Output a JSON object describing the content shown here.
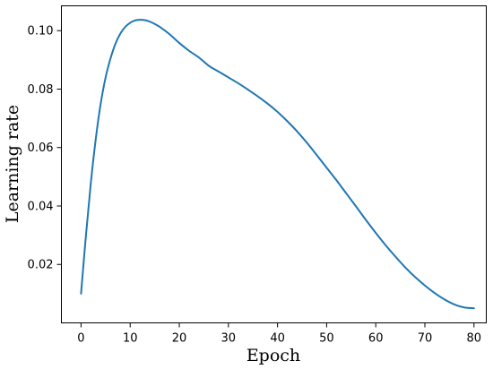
{
  "chart_data": {
    "type": "line",
    "title": "",
    "xlabel": "Epoch",
    "ylabel": "Learning rate",
    "xlim": [
      -4,
      82.5
    ],
    "ylim": [
      0.0,
      0.1085
    ],
    "x_ticks": [
      0,
      10,
      20,
      30,
      40,
      50,
      60,
      70,
      80
    ],
    "x_tick_labels": [
      "0",
      "10",
      "20",
      "30",
      "40",
      "50",
      "60",
      "70",
      "80"
    ],
    "y_ticks": [
      0.02,
      0.04,
      0.06,
      0.08,
      0.1
    ],
    "y_tick_labels": [
      "0.02",
      "0.04",
      "0.06",
      "0.08",
      "0.10"
    ],
    "grid": false,
    "legend": "none",
    "series": [
      {
        "color": "#1f77b4",
        "x": [
          0,
          1,
          2,
          3,
          4,
          5,
          6,
          7,
          8,
          9,
          10,
          11,
          12,
          13,
          14,
          15,
          16,
          18,
          20,
          22,
          24,
          26,
          28,
          30,
          32,
          34,
          36,
          38,
          40,
          42,
          44,
          46,
          48,
          50,
          52,
          54,
          56,
          58,
          60,
          62,
          64,
          66,
          68,
          70,
          72,
          74,
          76,
          78,
          80
        ],
        "y": [
          0.01,
          0.03,
          0.048,
          0.063,
          0.075,
          0.084,
          0.0905,
          0.0955,
          0.099,
          0.1013,
          0.1027,
          0.1035,
          0.1037,
          0.1036,
          0.1031,
          0.1023,
          0.1013,
          0.0988,
          0.0958,
          0.0931,
          0.0908,
          0.088,
          0.086,
          0.084,
          0.082,
          0.0798,
          0.0775,
          0.075,
          0.0722,
          0.069,
          0.0655,
          0.0616,
          0.0574,
          0.0531,
          0.0488,
          0.0443,
          0.0398,
          0.0352,
          0.0308,
          0.0266,
          0.0227,
          0.019,
          0.0157,
          0.0128,
          0.0102,
          0.008,
          0.0063,
          0.0053,
          0.005
        ]
      }
    ]
  }
}
